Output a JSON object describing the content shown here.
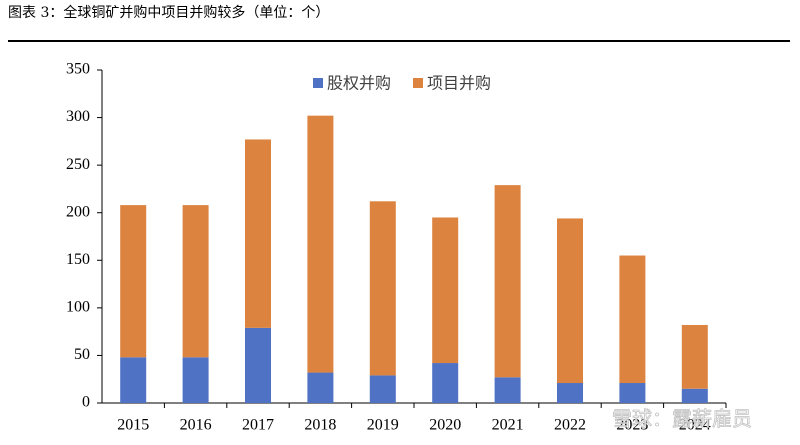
{
  "chart_data": {
    "type": "stacked_bar",
    "title": "图表 3：全球铜矿并购中项目并购较多（单位：个）",
    "categories": [
      "2015",
      "2016",
      "2017",
      "2018",
      "2019",
      "2020",
      "2021",
      "2022",
      "2023",
      "2024"
    ],
    "series": [
      {
        "name": "股权并购",
        "color": "#4f72c4",
        "values": [
          48,
          48,
          79,
          32,
          29,
          42,
          27,
          21,
          21,
          15
        ]
      },
      {
        "name": "项目并购",
        "color": "#dc843f",
        "values": [
          160,
          160,
          198,
          270,
          183,
          153,
          202,
          173,
          134,
          67
        ]
      }
    ],
    "ylim": [
      0,
      350
    ],
    "yticks": [
      0,
      50,
      100,
      150,
      200,
      250,
      300,
      350
    ],
    "legend": "top",
    "watermark": "雪球：露薪雇员"
  }
}
